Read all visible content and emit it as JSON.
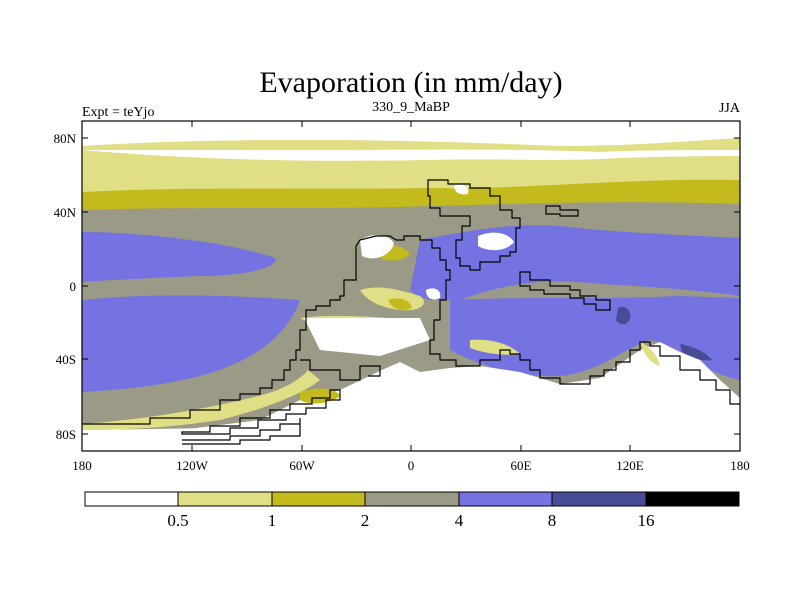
{
  "title": "Evaporation (in mm/day)",
  "left_label": "Expt = teYjo",
  "center_label": "330_9_MaBP",
  "right_label": "JJA",
  "colors": {
    "lt0_5": "#ffffff",
    "c0_5_1": "#e0df85",
    "c1_2": "#c3bb1e",
    "c2_4": "#9b9a87",
    "c4_8": "#7473e1",
    "c8_16": "#474c97",
    "gt16": "#000000"
  },
  "map": {
    "lat_ticks": [
      "80N",
      "40N",
      "0",
      "40S",
      "80S"
    ],
    "lon_ticks": [
      "180",
      "120W",
      "60W",
      "0",
      "60E",
      "120E",
      "180"
    ]
  },
  "colorbar": {
    "labels": [
      "0.5",
      "1",
      "2",
      "4",
      "8",
      "16"
    ]
  }
}
